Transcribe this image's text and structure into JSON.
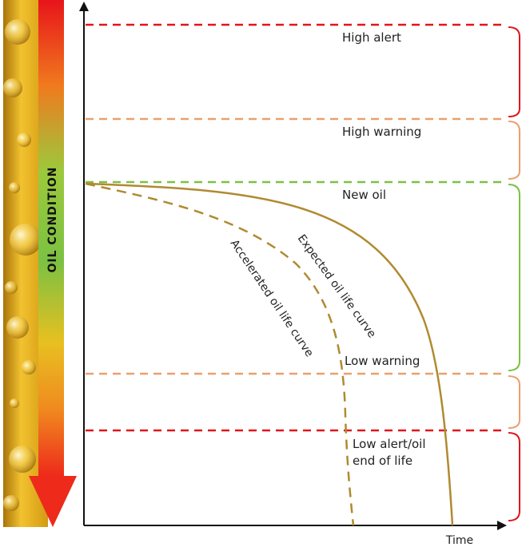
{
  "side_bar": {
    "label": "OIL CONDITION",
    "gradient": [
      "#e8141a",
      "#f07a1e",
      "#b7cf3a",
      "#7cc142",
      "#8cc63f",
      "#f08a1f",
      "#ee2a1b"
    ]
  },
  "zones": {
    "high_alert": {
      "label": "High alert",
      "color": "#e0161b"
    },
    "high_warning": {
      "label": "High warning",
      "color": "#e9a06e"
    },
    "new_oil": {
      "label": "New oil",
      "color": "#7cc142"
    },
    "low_warning": {
      "label": "Low warning",
      "color": "#e9a06e"
    },
    "low_alert": {
      "label_line1": "Low alert/oil",
      "label_line2": "end of life",
      "color": "#e0161b"
    }
  },
  "curves": {
    "expected": {
      "label": "Expected oil life curve",
      "color": "#b08a30",
      "style": "solid"
    },
    "accelerated": {
      "label": "Accelerated oil life curve",
      "color": "#b08a30",
      "style": "dashed"
    }
  },
  "axes": {
    "x_label": "Time",
    "color": "#111111"
  }
}
